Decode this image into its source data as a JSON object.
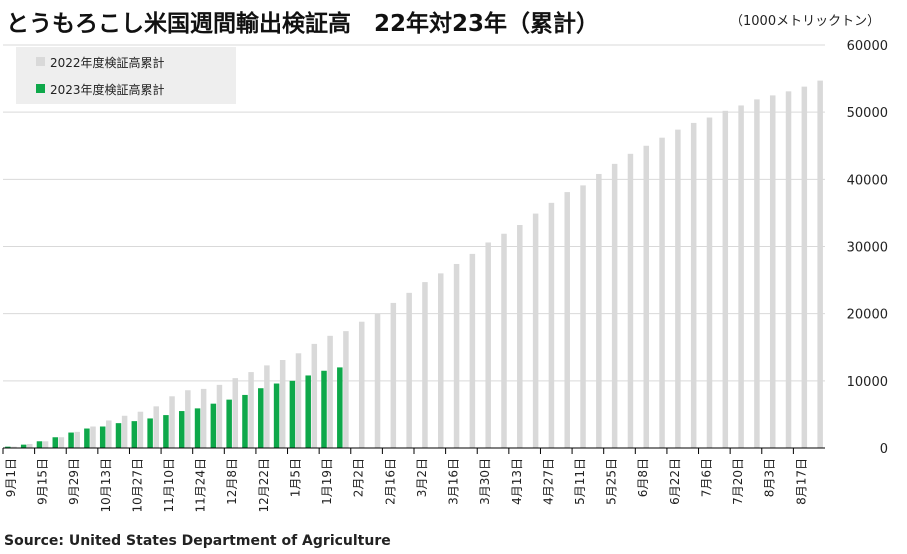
{
  "title": "とうもろこし米国週間輸出検証高　22年対23年（累計）",
  "unit": "（1000メトリックトン）",
  "source": "Source: United States Department of Agriculture",
  "colors": {
    "s2022": "#d9d9d9",
    "s2023": "#0ea84a",
    "grid": "#d9d9d9",
    "axis": "#000000",
    "legend_bg": "#eeeeee"
  },
  "chart_data": {
    "type": "bar",
    "title": "とうもろこし米国週間輸出検証高　22年対23年（累計）",
    "ylabel": "（1000メトリックトン）",
    "ylim": [
      0,
      60000
    ],
    "yticks": [
      0,
      10000,
      20000,
      30000,
      40000,
      50000,
      60000
    ],
    "ytick_labels": [
      "0",
      "10000",
      "20000",
      "30000",
      "40000",
      "50000",
      "60000"
    ],
    "grid": true,
    "legend_position": "top-left",
    "xtick_labels": [
      "9月1日",
      "9月15日",
      "9月29日",
      "10月13日",
      "10月27日",
      "11月10日",
      "11月24日",
      "12月8日",
      "12月22日",
      "1月5日",
      "1月19日",
      "2月2日",
      "2月16日",
      "3月2日",
      "3月16日",
      "3月30日",
      "4月13日",
      "4月27日",
      "5月11日",
      "5月25日",
      "6月8日",
      "6月22日",
      "7月6日",
      "7月20日",
      "8月3日",
      "8月17日"
    ],
    "series": [
      {
        "name": "2022年度検証高累計",
        "values": [
          200,
          600,
          1000,
          1600,
          2400,
          3200,
          4100,
          4800,
          5400,
          6200,
          7700,
          8600,
          8800,
          9400,
          10400,
          11300,
          12300,
          13100,
          14100,
          15500,
          16700,
          17400,
          18800,
          20000,
          21600,
          23100,
          24700,
          26000,
          27400,
          28900,
          30600,
          31900,
          33200,
          34900,
          36500,
          38100,
          39100,
          40800,
          42300,
          43800,
          45000,
          46200,
          47400,
          48400,
          49200,
          50200,
          51000,
          51900,
          52500,
          53100,
          53800,
          54700
        ]
      },
      {
        "name": "2023年度検証高累計",
        "values": [
          200,
          500,
          1000,
          1600,
          2300,
          2900,
          3200,
          3700,
          4000,
          4400,
          4900,
          5500,
          5900,
          6600,
          7200,
          7900,
          8900,
          9600,
          10000,
          10800,
          11500,
          12000
        ]
      }
    ]
  }
}
